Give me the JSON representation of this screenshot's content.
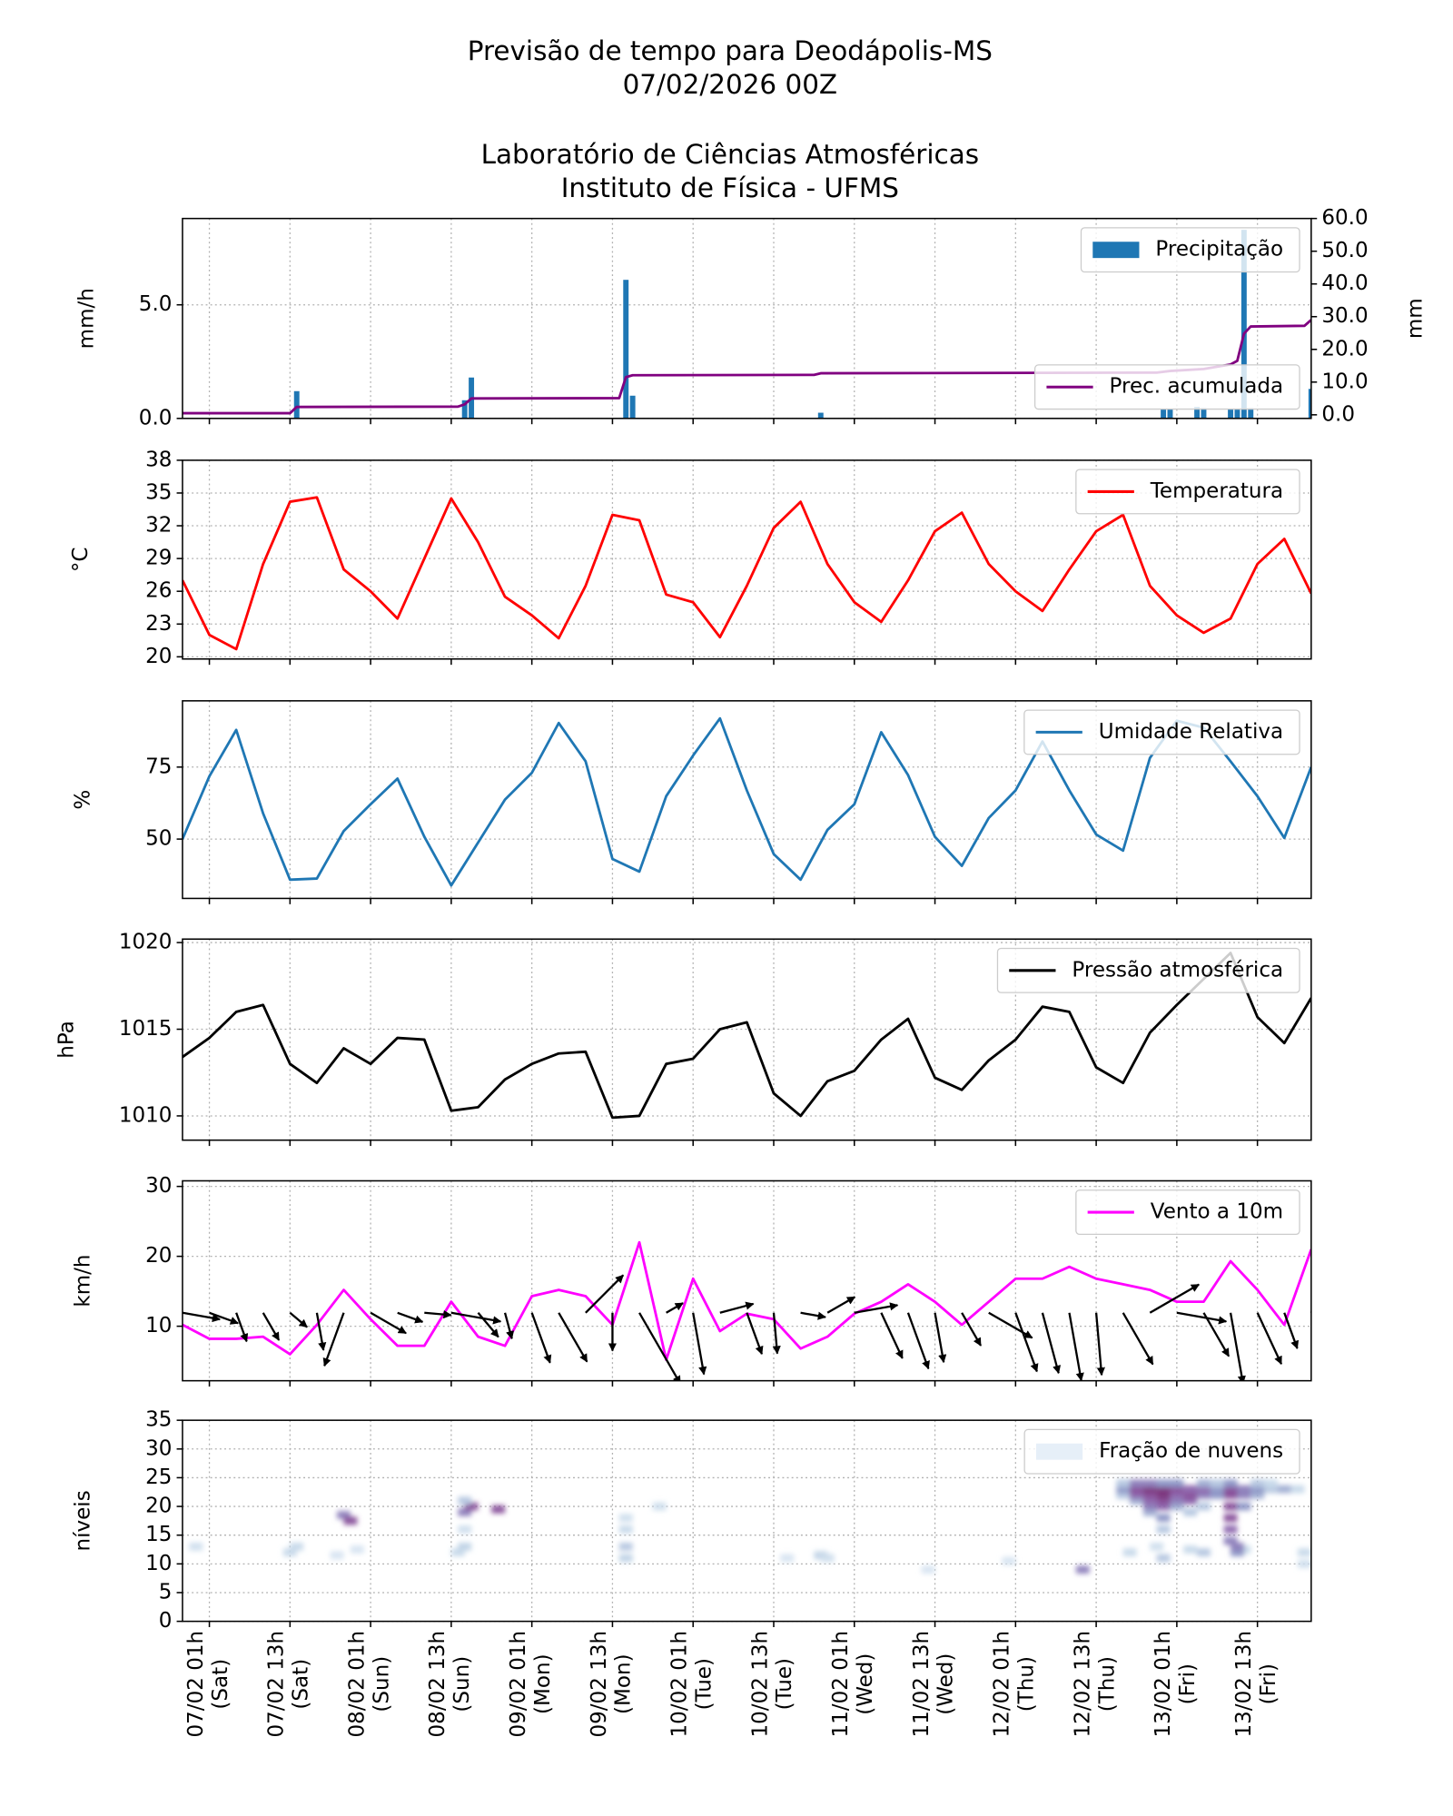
{
  "header": {
    "title": [
      "Previsão de tempo para Deodápolis-MS",
      "07/02/2026 00Z",
      "Laboratório de Ciências Atmosféricas",
      "Instituto de Física - UFMS"
    ]
  },
  "chart_data": [
    {
      "type": "bar",
      "ylabel": "mm/h",
      "y2label": "mm",
      "xlim": [
        0,
        168
      ],
      "ylim": [
        0,
        8.8
      ],
      "yticks": [
        {
          "value": 0,
          "label": "0.0"
        },
        {
          "value": 5,
          "label": "5.0"
        }
      ],
      "y2lim": [
        -1.1,
        60
      ],
      "y2ticks": [
        {
          "value": 0,
          "label": "0.0"
        },
        {
          "value": 10,
          "label": "10.0"
        },
        {
          "value": 20,
          "label": "20.0"
        },
        {
          "value": 30,
          "label": "30.0"
        },
        {
          "value": 40,
          "label": "40.0"
        },
        {
          "value": 50,
          "label": "50.0"
        },
        {
          "value": 60,
          "label": "60.0"
        }
      ],
      "grid": true,
      "series": [
        {
          "name": "Precipitação",
          "type": "bar",
          "color": "#1f77b4",
          "legend": "upper right",
          "x": [
            17,
            42,
            43,
            66,
            67,
            95,
            146,
            147,
            151,
            152,
            156,
            157,
            158,
            159,
            168
          ],
          "values": [
            1.2,
            0.8,
            1.8,
            6.1,
            1.0,
            0.25,
            0.4,
            0.4,
            0.5,
            0.45,
            0.4,
            0.4,
            8.3,
            0.45,
            1.3
          ]
        },
        {
          "name": "Prec. acumulada",
          "type": "line",
          "axis": "y2",
          "color": "#800080",
          "legend": "lower right",
          "x": [
            0,
            16,
            17,
            41,
            42,
            43,
            65,
            66,
            67,
            94,
            95,
            145,
            147,
            152,
            156,
            157,
            158,
            159,
            167,
            168
          ],
          "values": [
            0.5,
            0.5,
            2.4,
            2.5,
            3.2,
            5.0,
            5.1,
            11.5,
            12.1,
            12.2,
            12.7,
            12.9,
            13.4,
            14.0,
            15.4,
            16.5,
            24.8,
            27.0,
            27.2,
            29.0
          ]
        }
      ]
    },
    {
      "type": "line",
      "ylabel": "°C",
      "xlim": [
        0,
        168
      ],
      "ylim": [
        19.8,
        38
      ],
      "yticks": [
        20,
        23,
        26,
        29,
        32,
        35,
        38
      ],
      "grid": true,
      "series": [
        {
          "name": "Temperatura",
          "color": "#ff0000",
          "legend": "upper right",
          "x": [
            0,
            4,
            8,
            12,
            16,
            20,
            24,
            28,
            32,
            36,
            40,
            44,
            48,
            52,
            56,
            60,
            64,
            68,
            72,
            76,
            80,
            84,
            88,
            92,
            96,
            100,
            104,
            108,
            112,
            116,
            120,
            124,
            128,
            132,
            136,
            140,
            144,
            148,
            152,
            156,
            160,
            164,
            168
          ],
          "values": [
            27,
            22,
            20.7,
            28.5,
            34.2,
            34.6,
            28,
            26,
            23.5,
            29,
            34.5,
            30.5,
            25.5,
            23.8,
            21.7,
            26.5,
            33,
            32.5,
            25.7,
            25,
            21.8,
            26.5,
            31.8,
            34.2,
            28.5,
            25,
            23.2,
            27,
            31.5,
            33.2,
            28.5,
            26,
            24.2,
            28,
            31.5,
            33,
            26.5,
            23.8,
            22.2,
            23.5,
            28.5,
            30.8,
            25.8
          ]
        }
      ]
    },
    {
      "type": "line",
      "ylabel": "%",
      "xlim": [
        0,
        168
      ],
      "ylim": [
        29.4,
        98
      ],
      "yticks": [
        50,
        75
      ],
      "grid": true,
      "series": [
        {
          "name": "Umidade Relativa",
          "color": "#1f77b4",
          "legend": "upper right",
          "x": [
            0,
            4,
            8,
            12,
            16,
            20,
            24,
            28,
            32,
            36,
            40,
            44,
            48,
            52,
            56,
            60,
            64,
            68,
            72,
            76,
            80,
            84,
            88,
            92,
            96,
            100,
            104,
            108,
            112,
            116,
            120,
            124,
            128,
            132,
            136,
            140,
            144,
            148,
            152,
            156,
            160,
            164,
            168
          ],
          "values": [
            50,
            71.8,
            87.9,
            58.9,
            35.9,
            36.3,
            52.8,
            62.1,
            71,
            50.8,
            33.9,
            48.8,
            63.7,
            73,
            90.3,
            77,
            43.1,
            38.7,
            64.9,
            79,
            91.9,
            66.9,
            44.8,
            35.9,
            53.2,
            62.1,
            87.1,
            72.2,
            50.8,
            40.7,
            57.3,
            66.9,
            83.9,
            66.9,
            51.6,
            46,
            78.2,
            91.1,
            88.7,
            77,
            64.9,
            50.4,
            75
          ]
        }
      ]
    },
    {
      "type": "line",
      "ylabel": "hPa",
      "xlim": [
        0,
        168
      ],
      "ylim": [
        1008.6,
        1020.2
      ],
      "yticks": [
        1010,
        1015,
        1020
      ],
      "grid": true,
      "series": [
        {
          "name": "Pressão atmosférica",
          "color": "#000000",
          "legend": "upper right",
          "x": [
            0,
            4,
            8,
            12,
            16,
            20,
            24,
            28,
            32,
            36,
            40,
            44,
            48,
            52,
            56,
            60,
            64,
            68,
            72,
            76,
            80,
            84,
            88,
            92,
            96,
            100,
            104,
            108,
            112,
            116,
            120,
            124,
            128,
            132,
            136,
            140,
            144,
            148,
            152,
            156,
            160,
            164,
            168
          ],
          "values": [
            1013.4,
            1014.5,
            1016.0,
            1016.4,
            1013.0,
            1011.9,
            1013.9,
            1013.0,
            1014.5,
            1014.4,
            1010.3,
            1010.5,
            1012.1,
            1013.0,
            1013.6,
            1013.7,
            1009.9,
            1010.0,
            1013.0,
            1013.3,
            1015.0,
            1015.4,
            1011.3,
            1010.0,
            1012.0,
            1012.6,
            1014.4,
            1015.6,
            1012.2,
            1011.5,
            1013.2,
            1014.4,
            1016.3,
            1016.0,
            1012.8,
            1011.9,
            1014.8,
            1016.4,
            1017.9,
            1019.4,
            1015.7,
            1014.2,
            1016.8
          ]
        }
      ]
    },
    {
      "type": "line",
      "ylabel": "km/h",
      "xlim": [
        0,
        168
      ],
      "ylim": [
        2.2,
        30.8
      ],
      "yticks": [
        10,
        20,
        30
      ],
      "grid": true,
      "series": [
        {
          "name": "Vento a 10m",
          "color": "#ff00ff",
          "legend": "upper right",
          "x": [
            0,
            4,
            8,
            12,
            16,
            20,
            24,
            28,
            32,
            36,
            40,
            44,
            48,
            52,
            56,
            60,
            64,
            68,
            72,
            76,
            80,
            84,
            88,
            92,
            96,
            100,
            104,
            108,
            112,
            116,
            120,
            124,
            128,
            132,
            136,
            140,
            144,
            148,
            152,
            156,
            160,
            164,
            168
          ],
          "values": [
            10.2,
            8.2,
            8.2,
            8.5,
            6,
            10.2,
            15.2,
            11,
            7.2,
            7.2,
            13.5,
            8.5,
            7.2,
            14.3,
            15.2,
            14.3,
            10.2,
            22,
            5.2,
            16.8,
            9.3,
            11.8,
            11,
            6.8,
            8.5,
            11.8,
            13.5,
            16,
            13.5,
            10.2,
            13.5,
            16.8,
            16.8,
            18.5,
            16.8,
            16,
            15.2,
            13.5,
            13.5,
            19.3,
            15.2,
            10.2,
            21
          ],
          "direction": [
            100,
            110,
            160,
            150,
            130,
            170,
            200,
            120,
            110,
            95,
            100,
            140,
            165,
            160,
            150,
            45,
            180,
            150,
            60,
            170,
            75,
            160,
            175,
            100,
            60,
            80,
            155,
            160,
            170,
            150,
            120,
            160,
            165,
            170,
            175,
            150,
            60,
            100,
            150,
            170,
            155,
            160,
            20
          ]
        }
      ]
    },
    {
      "type": "heatmap",
      "ylabel": "níveis",
      "name": "Fração de nuvens",
      "legend": "upper right",
      "xlim": [
        0,
        168
      ],
      "ylim": [
        0,
        35
      ],
      "yticks": [
        0,
        5,
        10,
        15,
        20,
        25,
        30,
        35
      ],
      "grid": true,
      "colormap": [
        "#e6eff8",
        "#bfd3e6",
        "#8c96c6",
        "#8c5aa8",
        "#6e1a5e"
      ],
      "xticks": [
        {
          "value": 4,
          "label": "07/02 01h\n(Sat)"
        },
        {
          "value": 16,
          "label": "07/02 13h\n(Sat)"
        },
        {
          "value": 28,
          "label": "08/02 01h\n(Sun)"
        },
        {
          "value": 40,
          "label": "08/02 13h\n(Sun)"
        },
        {
          "value": 52,
          "label": "09/02 01h\n(Mon)"
        },
        {
          "value": 64,
          "label": "09/02 13h\n(Mon)"
        },
        {
          "value": 76,
          "label": "10/02 01h\n(Tue)"
        },
        {
          "value": 88,
          "label": "10/02 13h\n(Tue)"
        },
        {
          "value": 100,
          "label": "11/02 01h\n(Wed)"
        },
        {
          "value": 112,
          "label": "11/02 13h\n(Wed)"
        },
        {
          "value": 124,
          "label": "12/02 01h\n(Thu)"
        },
        {
          "value": 136,
          "label": "12/02 13h\n(Thu)"
        },
        {
          "value": 148,
          "label": "13/02 01h\n(Fri)"
        },
        {
          "value": 160,
          "label": "13/02 13h\n(Fri)"
        }
      ],
      "cells": [
        [
          2,
          13,
          0.15
        ],
        [
          16,
          12,
          0.2
        ],
        [
          17,
          13,
          0.2
        ],
        [
          23,
          11.5,
          0.1
        ],
        [
          26,
          12.5,
          0.1
        ],
        [
          24,
          18.5,
          0.6
        ],
        [
          25,
          17.5,
          0.8
        ],
        [
          41,
          12,
          0.2
        ],
        [
          42,
          13,
          0.25
        ],
        [
          42,
          16,
          0.15
        ],
        [
          42,
          19,
          0.6
        ],
        [
          43,
          20,
          0.8
        ],
        [
          42,
          21,
          0.3
        ],
        [
          47,
          19.5,
          0.8
        ],
        [
          66,
          11,
          0.25
        ],
        [
          66,
          13,
          0.3
        ],
        [
          66,
          16,
          0.2
        ],
        [
          66,
          18,
          0.15
        ],
        [
          71,
          20,
          0.15
        ],
        [
          90,
          11,
          0.1
        ],
        [
          95,
          11.5,
          0.25
        ],
        [
          96,
          11,
          0.15
        ],
        [
          111,
          9,
          0.1
        ],
        [
          123,
          10.5,
          0.1
        ],
        [
          134,
          9,
          0.6
        ],
        [
          141,
          12,
          0.2
        ],
        [
          145,
          13,
          0.15
        ],
        [
          146,
          11,
          0.3
        ],
        [
          150,
          12.5,
          0.2
        ],
        [
          152,
          12,
          0.3
        ],
        [
          158,
          12.5,
          0.2
        ],
        [
          167,
          12,
          0.2
        ],
        [
          167,
          10,
          0.15
        ],
        [
          140,
          22,
          0.3
        ],
        [
          140,
          23,
          0.5
        ],
        [
          140,
          24,
          0.3
        ],
        [
          142,
          21,
          0.4
        ],
        [
          142,
          22,
          0.7
        ],
        [
          142,
          23,
          0.8
        ],
        [
          142,
          24,
          0.6
        ],
        [
          144,
          19,
          0.4
        ],
        [
          144,
          20,
          0.6
        ],
        [
          144,
          21,
          0.7
        ],
        [
          144,
          22,
          0.8
        ],
        [
          144,
          23,
          0.9
        ],
        [
          144,
          24,
          0.6
        ],
        [
          146,
          16,
          0.3
        ],
        [
          146,
          18,
          0.5
        ],
        [
          146,
          20,
          0.7
        ],
        [
          146,
          21,
          0.8
        ],
        [
          146,
          22,
          0.9
        ],
        [
          146,
          23,
          0.9
        ],
        [
          146,
          24,
          0.5
        ],
        [
          148,
          20,
          0.4
        ],
        [
          148,
          21,
          0.6
        ],
        [
          148,
          22,
          0.7
        ],
        [
          148,
          23,
          0.8
        ],
        [
          148,
          24,
          0.5
        ],
        [
          150,
          19,
          0.3
        ],
        [
          150,
          21,
          0.7
        ],
        [
          150,
          22,
          0.8
        ],
        [
          150,
          23,
          0.7
        ],
        [
          152,
          20,
          0.3
        ],
        [
          152,
          22,
          0.6
        ],
        [
          152,
          23,
          0.7
        ],
        [
          152,
          24,
          0.4
        ],
        [
          154,
          22,
          0.5
        ],
        [
          154,
          23,
          0.5
        ],
        [
          154,
          24,
          0.3
        ],
        [
          156,
          14,
          0.6
        ],
        [
          156,
          16,
          0.7
        ],
        [
          156,
          18,
          0.8
        ],
        [
          156,
          20,
          0.8
        ],
        [
          156,
          22,
          0.8
        ],
        [
          156,
          23,
          0.8
        ],
        [
          156,
          24,
          0.5
        ],
        [
          157,
          12,
          0.5
        ],
        [
          157,
          13,
          0.6
        ],
        [
          158,
          20,
          0.5
        ],
        [
          158,
          22,
          0.6
        ],
        [
          158,
          23,
          0.6
        ],
        [
          160,
          22,
          0.4
        ],
        [
          160,
          23,
          0.5
        ],
        [
          160,
          24,
          0.3
        ],
        [
          162,
          23,
          0.3
        ],
        [
          162,
          24,
          0.2
        ],
        [
          164,
          23,
          0.4
        ],
        [
          166,
          23,
          0.2
        ]
      ]
    }
  ]
}
